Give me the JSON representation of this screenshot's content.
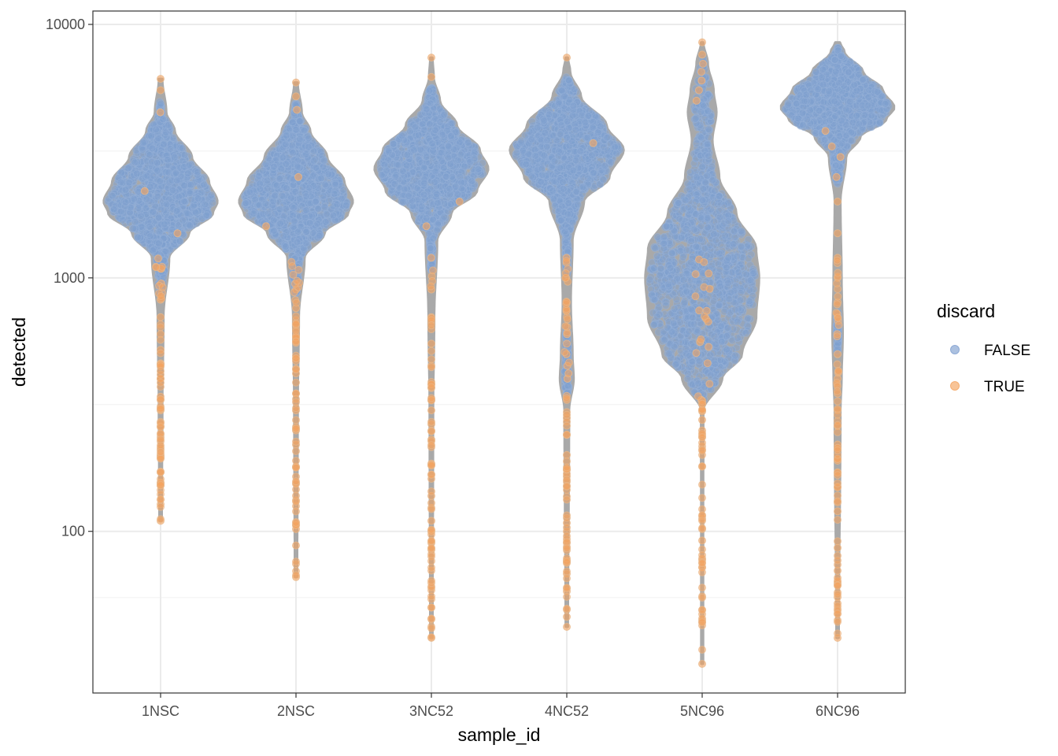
{
  "chart_data": {
    "type": "violin",
    "xlabel": "sample_id",
    "ylabel": "detected",
    "y_scale": "log10",
    "ylim": [
      30,
      10000
    ],
    "y_ticks": [
      100,
      1000,
      10000
    ],
    "y_tick_labels": [
      "100",
      "1000",
      "10000"
    ],
    "grid": true,
    "categories": [
      "1NSC",
      "2NSC",
      "3NC52",
      "4NC52",
      "5NC96",
      "6NC96"
    ],
    "legend": {
      "title": "discard",
      "placement": "right",
      "entries": [
        {
          "label": "FALSE",
          "color": "#7f9fcf"
        },
        {
          "label": "TRUE",
          "color": "#f4a460"
        }
      ]
    },
    "violins": [
      {
        "category": "1NSC",
        "min": 110,
        "max": 6100,
        "median": 2000,
        "density_profile": [
          [
            110,
            0.02
          ],
          [
            300,
            0.03
          ],
          [
            700,
            0.05
          ],
          [
            1200,
            0.15
          ],
          [
            1500,
            0.5
          ],
          [
            1800,
            0.92
          ],
          [
            2000,
            1.0
          ],
          [
            2400,
            0.85
          ],
          [
            3000,
            0.55
          ],
          [
            3800,
            0.25
          ],
          [
            4500,
            0.1
          ],
          [
            6100,
            0.03
          ]
        ],
        "discard_true_examples": [
          110,
          128,
          152,
          172,
          195,
          210,
          260,
          300,
          340,
          400,
          460,
          520,
          600,
          700,
          820,
          950,
          1500,
          2200,
          4500,
          5500,
          6100
        ]
      },
      {
        "category": "2NSC",
        "min": 66,
        "max": 5900,
        "median": 2000,
        "density_profile": [
          [
            66,
            0.02
          ],
          [
            300,
            0.03
          ],
          [
            700,
            0.05
          ],
          [
            1200,
            0.15
          ],
          [
            1500,
            0.5
          ],
          [
            1800,
            0.92
          ],
          [
            2000,
            1.0
          ],
          [
            2400,
            0.85
          ],
          [
            3000,
            0.55
          ],
          [
            3800,
            0.25
          ],
          [
            4500,
            0.1
          ],
          [
            5900,
            0.03
          ]
        ],
        "discard_true_examples": [
          66,
          88,
          102,
          155,
          180,
          220,
          250,
          300,
          350,
          420,
          480,
          560,
          650,
          760,
          900,
          1600,
          2500,
          4600,
          5200,
          5900
        ]
      },
      {
        "category": "3NC52",
        "min": 38,
        "max": 7400,
        "median": 2600,
        "density_profile": [
          [
            38,
            0.02
          ],
          [
            300,
            0.03
          ],
          [
            700,
            0.05
          ],
          [
            1400,
            0.1
          ],
          [
            1800,
            0.35
          ],
          [
            2200,
            0.8
          ],
          [
            2700,
            1.0
          ],
          [
            3200,
            0.85
          ],
          [
            4000,
            0.45
          ],
          [
            5000,
            0.15
          ],
          [
            6200,
            0.04
          ],
          [
            7400,
            0.02
          ]
        ],
        "discard_true_examples": [
          38,
          45,
          50,
          90,
          110,
          138,
          185,
          230,
          265,
          300,
          330,
          380,
          450,
          550,
          700,
          900,
          1200,
          1600,
          2000,
          6200,
          7400
        ]
      },
      {
        "category": "4NC52",
        "min": 42,
        "max": 7400,
        "median": 3200,
        "density_profile": [
          [
            42,
            0.02
          ],
          [
            300,
            0.04
          ],
          [
            400,
            0.12
          ],
          [
            500,
            0.1
          ],
          [
            800,
            0.07
          ],
          [
            1400,
            0.1
          ],
          [
            2000,
            0.3
          ],
          [
            2500,
            0.75
          ],
          [
            3200,
            1.0
          ],
          [
            4000,
            0.7
          ],
          [
            5200,
            0.25
          ],
          [
            6500,
            0.06
          ],
          [
            7400,
            0.02
          ]
        ],
        "discard_true_examples": [
          42,
          46,
          58,
          68,
          75,
          90,
          100,
          108,
          165,
          200,
          240,
          280,
          330,
          400,
          420,
          450,
          500,
          600,
          800,
          1200,
          3400,
          7400
        ]
      },
      {
        "category": "5NC96",
        "min": 30,
        "max": 8500,
        "median": 1000,
        "density_profile": [
          [
            30,
            0.01
          ],
          [
            300,
            0.02
          ],
          [
            400,
            0.35
          ],
          [
            500,
            0.7
          ],
          [
            700,
            0.95
          ],
          [
            1000,
            1.0
          ],
          [
            1300,
            0.95
          ],
          [
            1800,
            0.6
          ],
          [
            2500,
            0.3
          ],
          [
            3500,
            0.18
          ],
          [
            4500,
            0.25
          ],
          [
            5500,
            0.2
          ],
          [
            7000,
            0.1
          ],
          [
            8500,
            0.02
          ]
        ],
        "discard_true_examples": [
          30,
          72,
          78,
          92,
          102,
          112,
          115,
          180,
          250,
          275,
          300,
          330,
          5000,
          5500,
          6000,
          6500,
          7000,
          7600,
          8500
        ]
      },
      {
        "category": "6NC96",
        "min": 38,
        "max": 8500,
        "median": 4700,
        "density_profile": [
          [
            38,
            0.02
          ],
          [
            300,
            0.05
          ],
          [
            400,
            0.07
          ],
          [
            600,
            0.09
          ],
          [
            1000,
            0.07
          ],
          [
            2000,
            0.05
          ],
          [
            3000,
            0.15
          ],
          [
            3600,
            0.4
          ],
          [
            4200,
            0.85
          ],
          [
            4700,
            1.0
          ],
          [
            5500,
            0.8
          ],
          [
            6500,
            0.45
          ],
          [
            7800,
            0.12
          ],
          [
            8500,
            0.04
          ]
        ],
        "discard_true_examples": [
          38,
          52,
          55,
          62,
          70,
          86,
          120,
          130,
          150,
          170,
          190,
          220,
          260,
          300,
          350,
          400,
          500,
          600,
          700,
          800,
          1000,
          1200,
          1500,
          2000,
          2500,
          3000,
          3300,
          3800
        ]
      }
    ]
  }
}
